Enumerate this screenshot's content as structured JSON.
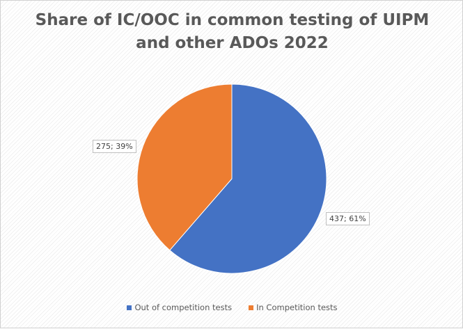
{
  "chart_data": {
    "type": "pie",
    "title_line1": "Share of IC/OOC in common testing of UIPM",
    "title_line2": "and other ADOs 2022",
    "slices": [
      {
        "name": "Out of competition tests",
        "value": 437,
        "percent": 61,
        "label": "437; 61%",
        "color": "#4472c4"
      },
      {
        "name": "In Competition tests",
        "value": 275,
        "percent": 39,
        "label": "275; 39%",
        "color": "#ed7d31"
      }
    ],
    "legend_position": "bottom"
  }
}
